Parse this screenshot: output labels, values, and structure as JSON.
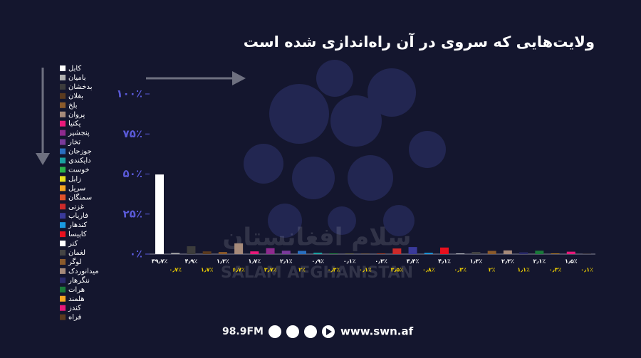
{
  "chart_data": {
    "type": "bar",
    "title": "ولایت‌هایی که سروی در آن راه‌اندازی شده است",
    "categories": [
      "كابل",
      "باميان",
      "بدخشان",
      "بغلان",
      "بلخ",
      "پروان",
      "پکتيا",
      "پنجشير",
      "تخار",
      "جوزجان",
      "دايکندی",
      "خوست",
      "زابل",
      "سرپل",
      "سمنگان",
      "غزنی",
      "فارياب",
      "کندهار",
      "کاپيسا",
      "کنر",
      "لغمان",
      "لوگر",
      "ميدانوردک",
      "ننگرهار",
      "هرات",
      "هلمند",
      "کندز",
      "فراه"
    ],
    "values": [
      49.7,
      0.7,
      4.9,
      1.7,
      1.3,
      6.7,
      1.7,
      3.7,
      2.1,
      2,
      0.9,
      0.3,
      0.1,
      0.1,
      0.3,
      3.5,
      4.4,
      0.8,
      4.1,
      0.3,
      1.3,
      2,
      2.3,
      1.1,
      2.1,
      0.3,
      1.5,
      0.1
    ],
    "value_labels": [
      "۴۹٫۷٪",
      "۰٫۷٪",
      "۴٫۹٪",
      "۱٫۷٪",
      "۱٫۳٪",
      "۶٫۷٪",
      "۱٫۷٪",
      "۳٫۷٪",
      "۲٫۱٪",
      "۲٪",
      "۰٫۹٪",
      "۰٫۳٪",
      "۰٫۱٪",
      "۰٫۱٪",
      "۰٫۳٪",
      "۳٫۵٪",
      "۴٫۴٪",
      "۰٫۸٪",
      "۴٫۱٪",
      "۰٫۳٪",
      "۱٫۳٪",
      "۲٪",
      "۲٫۳٪",
      "۱٫۱٪",
      "۲٫۱٪",
      "۰٫۳٪",
      "۱٫۵٪",
      "۰٫۱٪"
    ],
    "colors": [
      "#ffffff",
      "#b0b0b0",
      "#3c3c3c",
      "#5a3a1f",
      "#8b5a2b",
      "#a68a7a",
      "#e8197a",
      "#8e2a8e",
      "#7a3a9a",
      "#2a6fbf",
      "#1aa0a0",
      "#2bb34a",
      "#e8e020",
      "#f5a623",
      "#e0522a",
      "#cc2a2a",
      "#3a3a9a",
      "#1a9ae0",
      "#e8101e",
      "#ffffff",
      "#444444",
      "#8b5a2b",
      "#a68a7a",
      "#2a2a6a",
      "#1a7a3a",
      "#f5a623",
      "#e8197a",
      "#5a3a1f"
    ],
    "ylim": [
      0,
      100
    ],
    "yticks": [
      {
        "value": 0,
        "label": "۰٪"
      },
      {
        "value": 25,
        "label": "۲۵٪"
      },
      {
        "value": 50,
        "label": "۵۰٪"
      },
      {
        "value": 75,
        "label": "۷۵٪"
      },
      {
        "value": 100,
        "label": "۱۰۰٪"
      }
    ]
  },
  "watermark": {
    "latin": "SALAM AFGHANISTAN",
    "persian": "سلام افغانستان"
  },
  "footer": {
    "frequency": "98.9FM",
    "website": "www.swn.af"
  }
}
